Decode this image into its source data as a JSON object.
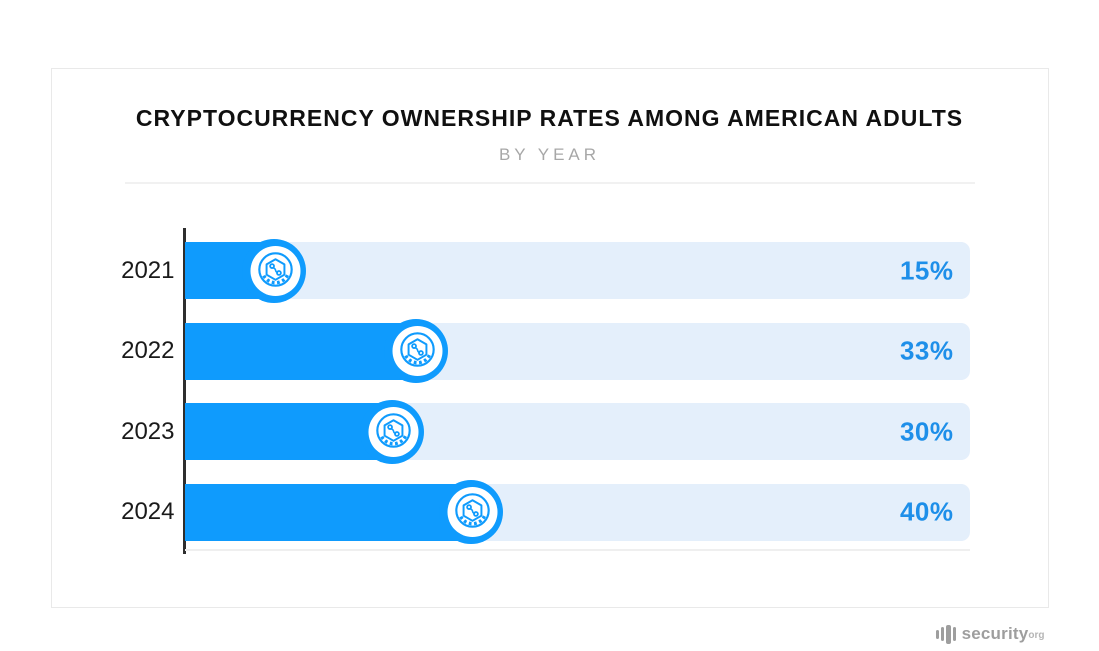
{
  "header": {
    "title": "CRYPTOCURRENCY OWNERSHIP RATES AMONG AMERICAN ADULTS",
    "subtitle": "BY YEAR"
  },
  "chart_data": {
    "type": "bar",
    "orientation": "horizontal",
    "title": "CRYPTOCURRENCY OWNERSHIP RATES AMONG AMERICAN ADULTS",
    "subtitle": "BY YEAR",
    "categories": [
      "2021",
      "2022",
      "2023",
      "2024"
    ],
    "values": [
      15,
      33,
      30,
      40
    ],
    "value_labels": [
      "15%",
      "33%",
      "30%",
      "40%"
    ],
    "unit": "%",
    "xlim": [
      0,
      100
    ],
    "grid": false,
    "legend": false,
    "bar_marker": "crypto-coin-icon"
  },
  "colors": {
    "bar": "#0F9BFD",
    "track": "#E4EFFB",
    "value_label": "#1E8FE9",
    "axis": "#2E2E2E",
    "title": "#101010",
    "subtitle": "#A7A7A7",
    "divider": "#F1F1F1",
    "card_border": "#E9E9E9",
    "logo": "#9E9E9E"
  },
  "branding": {
    "name": "security",
    "tld": "org"
  }
}
